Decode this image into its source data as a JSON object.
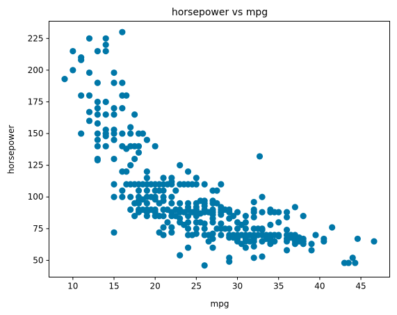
{
  "chart_data": {
    "type": "scatter",
    "title": "horsepower vs mpg",
    "xlabel": "mpg",
    "ylabel": "horsepower",
    "xlim": [
      7.1,
      48.5
    ],
    "ylim": [
      36.8,
      238.6
    ],
    "xticks": [
      10,
      15,
      20,
      25,
      30,
      35,
      40,
      45
    ],
    "yticks": [
      50,
      75,
      100,
      125,
      150,
      175,
      200,
      225
    ],
    "grid": false,
    "marker_color": "#0077a8",
    "series": [
      {
        "points": [
          [
            9,
            193
          ],
          [
            10,
            215
          ],
          [
            10,
            200
          ],
          [
            11,
            210
          ],
          [
            11,
            208
          ],
          [
            11,
            180
          ],
          [
            11,
            150
          ],
          [
            12,
            225
          ],
          [
            12,
            198
          ],
          [
            12,
            180
          ],
          [
            12,
            167
          ],
          [
            12,
            160
          ],
          [
            13,
            215
          ],
          [
            13,
            190
          ],
          [
            13,
            175
          ],
          [
            13,
            170
          ],
          [
            13,
            165
          ],
          [
            13,
            158
          ],
          [
            13,
            150
          ],
          [
            13,
            145
          ],
          [
            13,
            140
          ],
          [
            13,
            130
          ],
          [
            13,
            129
          ],
          [
            14,
            225
          ],
          [
            14,
            220
          ],
          [
            14,
            215
          ],
          [
            14,
            175
          ],
          [
            14,
            165
          ],
          [
            14,
            153
          ],
          [
            14,
            150
          ],
          [
            14,
            148
          ],
          [
            14,
            140
          ],
          [
            15,
            198
          ],
          [
            15,
            190
          ],
          [
            15,
            170
          ],
          [
            15,
            165
          ],
          [
            15,
            153
          ],
          [
            15,
            150
          ],
          [
            15,
            145
          ],
          [
            15,
            130
          ],
          [
            15,
            110
          ],
          [
            15,
            100
          ],
          [
            15,
            72
          ],
          [
            16,
            230
          ],
          [
            16,
            190
          ],
          [
            16,
            180
          ],
          [
            16,
            170
          ],
          [
            16,
            150
          ],
          [
            16,
            140
          ],
          [
            16,
            120
          ],
          [
            16,
            105
          ],
          [
            16,
            100
          ],
          [
            16.5,
            180
          ],
          [
            16.5,
            138
          ],
          [
            16.5,
            120
          ],
          [
            16.5,
            110
          ],
          [
            17,
            155
          ],
          [
            17,
            150
          ],
          [
            17,
            140
          ],
          [
            17,
            125
          ],
          [
            17,
            110
          ],
          [
            17,
            100
          ],
          [
            17,
            90
          ],
          [
            17.5,
            165
          ],
          [
            17.5,
            140
          ],
          [
            17.5,
            130
          ],
          [
            17.5,
            110
          ],
          [
            17.5,
            95
          ],
          [
            17.5,
            85
          ],
          [
            18,
            150
          ],
          [
            18,
            140
          ],
          [
            18,
            135
          ],
          [
            18,
            110
          ],
          [
            18,
            105
          ],
          [
            18,
            100
          ],
          [
            18,
            97
          ],
          [
            18,
            95
          ],
          [
            18,
            90
          ],
          [
            18,
            88
          ],
          [
            18.5,
            150
          ],
          [
            18.5,
            110
          ],
          [
            18.5,
            98
          ],
          [
            18.5,
            90
          ],
          [
            19,
            145
          ],
          [
            19,
            120
          ],
          [
            19,
            115
          ],
          [
            19,
            110
          ],
          [
            19,
            105
          ],
          [
            19,
            100
          ],
          [
            19,
            95
          ],
          [
            19,
            90
          ],
          [
            19,
            88
          ],
          [
            19,
            85
          ],
          [
            19.5,
            110
          ],
          [
            19.5,
            100
          ],
          [
            19.5,
            90
          ],
          [
            20,
            140
          ],
          [
            20,
            110
          ],
          [
            20,
            105
          ],
          [
            20,
            100
          ],
          [
            20,
            98
          ],
          [
            20,
            90
          ],
          [
            20,
            88
          ],
          [
            20,
            85
          ],
          [
            20.5,
            110
          ],
          [
            20.5,
            105
          ],
          [
            20.5,
            95
          ],
          [
            20.5,
            85
          ],
          [
            20.5,
            72
          ],
          [
            21,
            115
          ],
          [
            21,
            110
          ],
          [
            21,
            105
          ],
          [
            21,
            100
          ],
          [
            21,
            97
          ],
          [
            21,
            90
          ],
          [
            21,
            85
          ],
          [
            21,
            76
          ],
          [
            21,
            70
          ],
          [
            21.5,
            110
          ],
          [
            21.5,
            90
          ],
          [
            21.5,
            80
          ],
          [
            22,
            115
          ],
          [
            22,
            112
          ],
          [
            22,
            110
          ],
          [
            22,
            100
          ],
          [
            22,
            95
          ],
          [
            22,
            88
          ],
          [
            22,
            85
          ],
          [
            22,
            76
          ],
          [
            22,
            72
          ],
          [
            22.5,
            105
          ],
          [
            22.5,
            90
          ],
          [
            22.5,
            85
          ],
          [
            23,
            125
          ],
          [
            23,
            110
          ],
          [
            23,
            95
          ],
          [
            23,
            90
          ],
          [
            23,
            88
          ],
          [
            23,
            83
          ],
          [
            23,
            80
          ],
          [
            23,
            54
          ],
          [
            23.5,
            110
          ],
          [
            23.5,
            88
          ],
          [
            23.5,
            78
          ],
          [
            24,
            120
          ],
          [
            24,
            110
          ],
          [
            24,
            95
          ],
          [
            24,
            92
          ],
          [
            24,
            90
          ],
          [
            24,
            85
          ],
          [
            24,
            80
          ],
          [
            24,
            75
          ],
          [
            24,
            70
          ],
          [
            24,
            60
          ],
          [
            24.5,
            110
          ],
          [
            24.5,
            88
          ],
          [
            24.5,
            70
          ],
          [
            25,
            115
          ],
          [
            25,
            110
          ],
          [
            25,
            95
          ],
          [
            25,
            92
          ],
          [
            25,
            90
          ],
          [
            25,
            88
          ],
          [
            25,
            85
          ],
          [
            25,
            80
          ],
          [
            25,
            75
          ],
          [
            25,
            71
          ],
          [
            25.5,
            97
          ],
          [
            25.5,
            87
          ],
          [
            25.5,
            80
          ],
          [
            26,
            110
          ],
          [
            26,
            97
          ],
          [
            26,
            95
          ],
          [
            26,
            93
          ],
          [
            26,
            90
          ],
          [
            26,
            88
          ],
          [
            26,
            79
          ],
          [
            26,
            75
          ],
          [
            26,
            70
          ],
          [
            26,
            46
          ],
          [
            26.5,
            88
          ],
          [
            26.5,
            70
          ],
          [
            26.5,
            65
          ],
          [
            27,
            105
          ],
          [
            27,
            97
          ],
          [
            27,
            95
          ],
          [
            27,
            90
          ],
          [
            27,
            88
          ],
          [
            27,
            86
          ],
          [
            27,
            83
          ],
          [
            27,
            80
          ],
          [
            27,
            71
          ],
          [
            27,
            67
          ],
          [
            27,
            60
          ],
          [
            27.5,
            105
          ],
          [
            27.5,
            95
          ],
          [
            27.5,
            75
          ],
          [
            28,
            110
          ],
          [
            28,
            92
          ],
          [
            28,
            90
          ],
          [
            28,
            88
          ],
          [
            28,
            86
          ],
          [
            28,
            79
          ],
          [
            28,
            75
          ],
          [
            28,
            70
          ],
          [
            28.5,
            90
          ],
          [
            28.5,
            75
          ],
          [
            29,
            90
          ],
          [
            29,
            88
          ],
          [
            29,
            83
          ],
          [
            29,
            75
          ],
          [
            29,
            70
          ],
          [
            29,
            68
          ],
          [
            29,
            52
          ],
          [
            29,
            49
          ],
          [
            29.5,
            85
          ],
          [
            29.5,
            70
          ],
          [
            29.5,
            68
          ],
          [
            30,
            88
          ],
          [
            30,
            80
          ],
          [
            30,
            75
          ],
          [
            30,
            70
          ],
          [
            30,
            68
          ],
          [
            30,
            67
          ],
          [
            30,
            65
          ],
          [
            30.5,
            78
          ],
          [
            30.5,
            70
          ],
          [
            30.5,
            63
          ],
          [
            31,
            85
          ],
          [
            31,
            80
          ],
          [
            31,
            75
          ],
          [
            31,
            70
          ],
          [
            31,
            68
          ],
          [
            31,
            67
          ],
          [
            31,
            65
          ],
          [
            31,
            60
          ],
          [
            31.5,
            70
          ],
          [
            31.5,
            65
          ],
          [
            32,
            96
          ],
          [
            32,
            90
          ],
          [
            32,
            88
          ],
          [
            32,
            84
          ],
          [
            32,
            75
          ],
          [
            32,
            70
          ],
          [
            32,
            67
          ],
          [
            32,
            65
          ],
          [
            32,
            61
          ],
          [
            32,
            52
          ],
          [
            32.5,
            75
          ],
          [
            32.5,
            70
          ],
          [
            32.7,
            132
          ],
          [
            33,
            100
          ],
          [
            33,
            88
          ],
          [
            33,
            75
          ],
          [
            33,
            74
          ],
          [
            33,
            70
          ],
          [
            33,
            65
          ],
          [
            33,
            53
          ],
          [
            33.5,
            70
          ],
          [
            33.5,
            67
          ],
          [
            34,
            90
          ],
          [
            34,
            88
          ],
          [
            34,
            78
          ],
          [
            34,
            70
          ],
          [
            34,
            68
          ],
          [
            34,
            65
          ],
          [
            34,
            63
          ],
          [
            34.5,
            88
          ],
          [
            34.5,
            70
          ],
          [
            34.5,
            65
          ],
          [
            35,
            88
          ],
          [
            35,
            80
          ],
          [
            35,
            70
          ],
          [
            35,
            69
          ],
          [
            36,
            88
          ],
          [
            36,
            84
          ],
          [
            36,
            74
          ],
          [
            36,
            70
          ],
          [
            36,
            67
          ],
          [
            36,
            65
          ],
          [
            36,
            58
          ],
          [
            36.5,
            70
          ],
          [
            36.5,
            68
          ],
          [
            37,
            92
          ],
          [
            37,
            70
          ],
          [
            37,
            68
          ],
          [
            37,
            67
          ],
          [
            37,
            65
          ],
          [
            37,
            63
          ],
          [
            37.5,
            68
          ],
          [
            37.5,
            65
          ],
          [
            38,
            85
          ],
          [
            38,
            67
          ],
          [
            38,
            65
          ],
          [
            38,
            63
          ],
          [
            39,
            63
          ],
          [
            39,
            58
          ],
          [
            39.5,
            70
          ],
          [
            40.5,
            67
          ],
          [
            40.5,
            65
          ],
          [
            41.5,
            76
          ],
          [
            43,
            48
          ],
          [
            43.5,
            48
          ],
          [
            44,
            52
          ],
          [
            44.3,
            48
          ],
          [
            44.6,
            67
          ],
          [
            46.6,
            65
          ]
        ]
      }
    ]
  }
}
